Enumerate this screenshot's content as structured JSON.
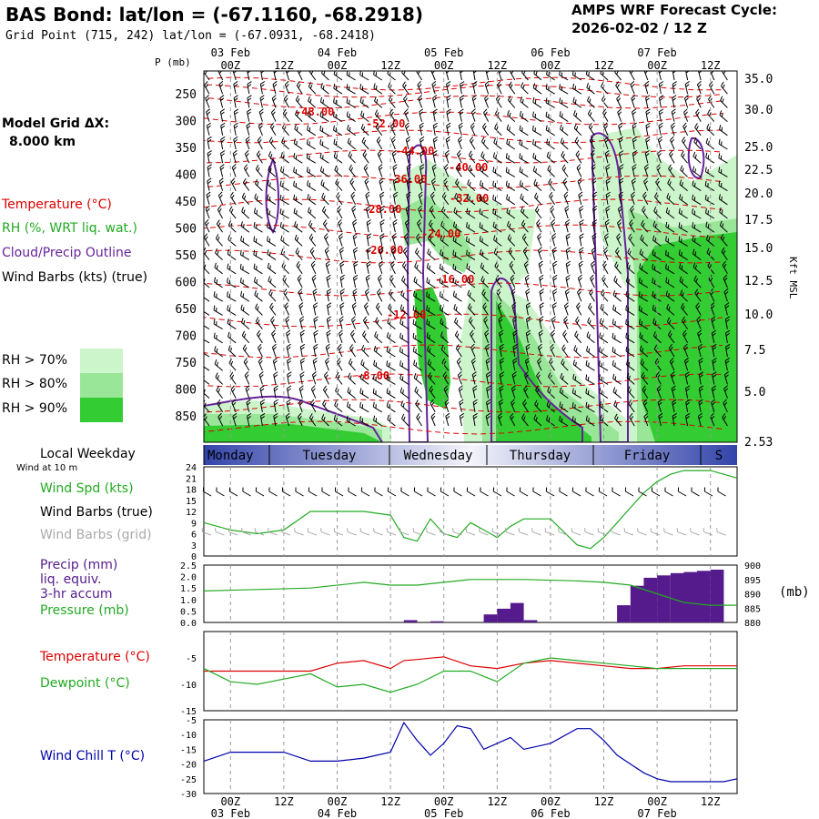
{
  "header": {
    "title": "BAS Bond:  lat/lon = (-67.1160, -68.2918)",
    "grid_point": "Grid Point (715, 242) lat/lon = (-67.0931, -68.2418)",
    "cycle_label": "AMPS WRF Forecast Cycle:",
    "cycle_value": "2026-02-02 / 12  Z"
  },
  "left_labels": {
    "p_unit": "P (mb)",
    "model_grid": "Model Grid ΔX:",
    "grid_dx": "8.000 km",
    "temperature": "Temperature (°C)",
    "rh": "RH (%, WRT liq. wat.)",
    "cloud": "Cloud/Precip Outline",
    "wind_barbs": "Wind Barbs (kts) (true)",
    "rh70": "RH > 70%",
    "rh80": "RH > 80%",
    "rh90": "RH > 90%",
    "local_weekday": "Local Weekday",
    "wind_10m": "Wind at 10 m",
    "wind_spd": "Wind Spd (kts)",
    "wind_barbs_true": "Wind Barbs (true)",
    "wind_barbs_grid": "Wind Barbs (grid)",
    "precip1": "Precip (mm)",
    "precip2": "liq. equiv.",
    "precip3": "3-hr accum",
    "pressure": "Pressure (mb)",
    "pressure_unit": "(mb)",
    "temp2": "Temperature (°C)",
    "dewpoint": "Dewpoint (°C)",
    "wind_chill": "Wind Chill T (°C)",
    "kft_msl": "Kft MSL"
  },
  "colors": {
    "temperature": "#dd0000",
    "rh": "#22aa22",
    "cloud": "#662299",
    "rh70": "#ccf5cc",
    "rh80": "#99e699",
    "rh90": "#33cc33",
    "precip": "#551a8b",
    "windchill": "#0000aa",
    "grid_gray": "#999999"
  },
  "chart_data": [
    {
      "type": "area",
      "name": "cross-section",
      "time_top_labels": [
        "00Z",
        "12Z",
        "00Z",
        "12Z",
        "00Z",
        "12Z",
        "00Z",
        "12Z",
        "00Z",
        "12Z"
      ],
      "date_top_labels": [
        "03 Feb",
        "04 Feb",
        "05 Feb",
        "06 Feb",
        "07 Feb"
      ],
      "pressure_ticks": [
        250,
        300,
        350,
        400,
        450,
        500,
        550,
        600,
        650,
        700,
        750,
        800,
        850
      ],
      "height_ticks_kft": [
        "35.0",
        "30.0",
        "25.0",
        "22.5",
        "20.0",
        "17.5",
        "15.0",
        "12.5",
        "10.0",
        "7.5",
        "5.0",
        "2.53"
      ],
      "temperature_contour_labels": [
        "-48.00",
        "-52.00",
        "-44.00",
        "-40.00",
        "-36.00",
        "-32.00",
        "-28.00",
        "-24.00",
        "-20.00",
        "-16.00",
        "-12.00",
        "-8.00"
      ]
    },
    {
      "type": "table",
      "name": "weekday-bar",
      "days": [
        "Monday",
        "Tuesday",
        "Wednesday",
        "Thursday",
        "Friday",
        "S"
      ]
    },
    {
      "type": "line",
      "name": "wind-speed",
      "ylim": [
        0,
        24
      ],
      "yticks": [
        0,
        3,
        6,
        9,
        12,
        15,
        18,
        21,
        24
      ],
      "x_hours": [
        0,
        6,
        12,
        18,
        24,
        30,
        36,
        42,
        45,
        48,
        51,
        54,
        57,
        60,
        63,
        66,
        69,
        72,
        78,
        84,
        87,
        90,
        93,
        96,
        99,
        102,
        105,
        108,
        111,
        114,
        117,
        120
      ],
      "values": [
        9,
        7,
        6,
        7,
        12,
        12,
        12,
        11,
        5,
        4,
        10,
        6,
        5,
        9,
        7,
        5,
        8,
        10,
        10,
        3,
        2,
        5,
        9,
        13,
        17,
        20,
        22,
        23,
        23,
        23,
        22,
        21
      ]
    },
    {
      "type": "bar",
      "name": "precip",
      "ylim": [
        0,
        2.5
      ],
      "yticks": [
        "0.0",
        "0.5",
        "1.0",
        "1.5",
        "2.0",
        "2.5"
      ],
      "pressure_ticks": [
        880,
        885,
        890,
        895,
        900
      ],
      "bar_hours": [
        48,
        54,
        66,
        69,
        72,
        75,
        96,
        99,
        102,
        105,
        108,
        111,
        114,
        117
      ],
      "bar_values": [
        0.1,
        0.05,
        0.35,
        0.6,
        0.85,
        0.1,
        0.75,
        1.6,
        1.95,
        2.05,
        2.15,
        2.2,
        2.25,
        2.3
      ],
      "pressure_hours": [
        0,
        12,
        24,
        36,
        42,
        48,
        60,
        66,
        72,
        84,
        90,
        96,
        102,
        108,
        114,
        120
      ],
      "pressure_values": [
        891,
        891.5,
        892,
        894,
        893,
        893,
        895,
        895,
        895,
        894.5,
        894,
        893,
        890,
        887,
        886,
        886
      ]
    },
    {
      "type": "line",
      "name": "temperature-dewpoint",
      "ylim": [
        -15,
        0
      ],
      "yticks": [
        -5,
        -10,
        -15
      ],
      "series": [
        {
          "name": "Temperature",
          "hours": [
            0,
            12,
            24,
            30,
            36,
            42,
            45,
            48,
            54,
            60,
            66,
            72,
            78,
            84,
            90,
            96,
            102,
            108,
            114,
            120
          ],
          "values": [
            -7.5,
            -7.5,
            -7.5,
            -6,
            -5.5,
            -7,
            -5.5,
            -5.3,
            -4.8,
            -6.5,
            -7,
            -6,
            -5.5,
            -6,
            -6.5,
            -7,
            -7,
            -6.5,
            -6.5,
            -6.5
          ]
        },
        {
          "name": "Dewpoint",
          "hours": [
            0,
            6,
            12,
            18,
            24,
            30,
            36,
            42,
            48,
            54,
            60,
            66,
            72,
            78,
            84,
            90,
            96,
            102,
            108,
            114,
            120
          ],
          "values": [
            -7,
            -9.5,
            -10,
            -9,
            -8,
            -10.5,
            -10,
            -11.5,
            -10,
            -7.5,
            -7.5,
            -9.5,
            -6,
            -5,
            -5.5,
            -6,
            -6.5,
            -7,
            -7,
            -7,
            -7
          ]
        }
      ]
    },
    {
      "type": "line",
      "name": "wind-chill",
      "ylim": [
        -30,
        -5
      ],
      "yticks": [
        -5,
        -10,
        -15,
        -20,
        -25,
        -30
      ],
      "x_time_labels": [
        "00Z",
        "12Z",
        "00Z",
        "12Z",
        "00Z",
        "12Z",
        "00Z",
        "12Z",
        "00Z",
        "12Z"
      ],
      "x_date_labels": [
        "03 Feb",
        "04 Feb",
        "05 Feb",
        "06 Feb",
        "07 Feb"
      ],
      "hours": [
        0,
        6,
        12,
        18,
        24,
        30,
        36,
        42,
        45,
        48,
        51,
        54,
        57,
        60,
        63,
        66,
        69,
        72,
        78,
        84,
        87,
        90,
        93,
        96,
        99,
        102,
        105,
        108,
        111,
        114,
        117,
        120
      ],
      "values": [
        -19,
        -16,
        -16,
        -16,
        -19,
        -19,
        -18,
        -16,
        -6,
        -12,
        -17,
        -13,
        -7,
        -8,
        -15,
        -13,
        -11,
        -15,
        -13,
        -8,
        -8,
        -12,
        -17,
        -20,
        -23,
        -25,
        -26,
        -26,
        -26,
        -26,
        -26,
        -25
      ]
    }
  ]
}
